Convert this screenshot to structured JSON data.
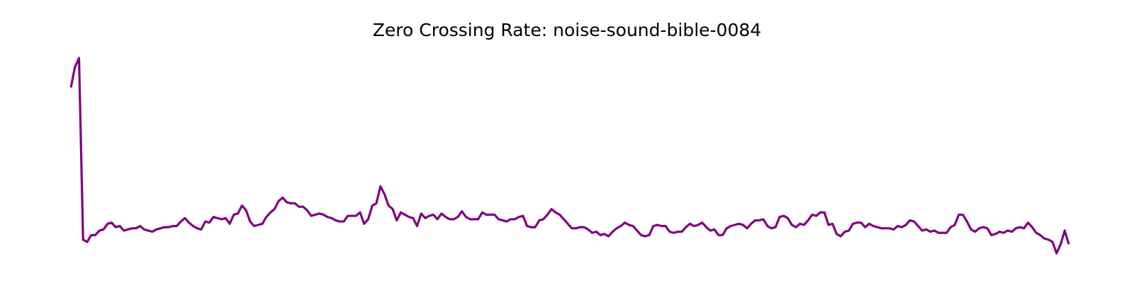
{
  "chart_data": {
    "type": "line",
    "title": "Zero Crossing Rate: noise-sound-bible-0084",
    "xlabel": "",
    "ylabel": "",
    "axes_visible": false,
    "grid": false,
    "series": [
      {
        "color": "#800080",
        "values": [
          0.081,
          0.09,
          0.094,
          0.014,
          0.013,
          0.016,
          0.016,
          0.018,
          0.0185,
          0.021,
          0.0215,
          0.0195,
          0.02,
          0.018,
          0.0185,
          0.019,
          0.019,
          0.02,
          0.0185,
          0.018,
          0.0175,
          0.0185,
          0.019,
          0.0195,
          0.0195,
          0.02,
          0.02,
          0.022,
          0.0235,
          0.0215,
          0.02,
          0.019,
          0.0185,
          0.022,
          0.0215,
          0.024,
          0.0235,
          0.023,
          0.0235,
          0.021,
          0.025,
          0.0255,
          0.029,
          0.027,
          0.022,
          0.02,
          0.0205,
          0.021,
          0.024,
          0.026,
          0.0275,
          0.031,
          0.0325,
          0.0305,
          0.03,
          0.03,
          0.0285,
          0.0285,
          0.027,
          0.0245,
          0.025,
          0.0255,
          0.025,
          0.024,
          0.0235,
          0.0225,
          0.022,
          0.022,
          0.0245,
          0.0245,
          0.0245,
          0.026,
          0.021,
          0.023,
          0.029,
          0.03,
          0.0375,
          0.034,
          0.029,
          0.0275,
          0.0225,
          0.026,
          0.025,
          0.024,
          0.0235,
          0.02,
          0.0255,
          0.0235,
          0.0245,
          0.025,
          0.023,
          0.0255,
          0.024,
          0.023,
          0.023,
          0.024,
          0.0265,
          0.024,
          0.023,
          0.023,
          0.023,
          0.026,
          0.025,
          0.025,
          0.025,
          0.023,
          0.0225,
          0.022,
          0.023,
          0.023,
          0.024,
          0.0245,
          0.02,
          0.0195,
          0.0195,
          0.0225,
          0.023,
          0.025,
          0.0275,
          0.026,
          0.025,
          0.023,
          0.021,
          0.019,
          0.019,
          0.0195,
          0.0195,
          0.0185,
          0.017,
          0.0175,
          0.016,
          0.0165,
          0.0155,
          0.0175,
          0.019,
          0.02,
          0.0215,
          0.0205,
          0.02,
          0.018,
          0.016,
          0.0155,
          0.016,
          0.02,
          0.0205,
          0.02,
          0.02,
          0.0175,
          0.017,
          0.0175,
          0.0175,
          0.0195,
          0.021,
          0.02,
          0.0205,
          0.0215,
          0.0195,
          0.018,
          0.0185,
          0.016,
          0.016,
          0.019,
          0.02,
          0.0205,
          0.021,
          0.0205,
          0.019,
          0.021,
          0.0225,
          0.0225,
          0.023,
          0.02,
          0.019,
          0.0195,
          0.024,
          0.0245,
          0.0235,
          0.0205,
          0.0195,
          0.021,
          0.0205,
          0.0225,
          0.025,
          0.0245,
          0.026,
          0.026,
          0.0205,
          0.021,
          0.0165,
          0.0155,
          0.0175,
          0.018,
          0.021,
          0.0215,
          0.0215,
          0.0195,
          0.021,
          0.02,
          0.0195,
          0.019,
          0.019,
          0.019,
          0.0185,
          0.02,
          0.0195,
          0.0205,
          0.0225,
          0.022,
          0.02,
          0.018,
          0.0185,
          0.0175,
          0.018,
          0.017,
          0.017,
          0.017,
          0.0195,
          0.0205,
          0.025,
          0.025,
          0.022,
          0.0185,
          0.0175,
          0.019,
          0.0195,
          0.019,
          0.016,
          0.0165,
          0.0175,
          0.017,
          0.018,
          0.0175,
          0.019,
          0.0195,
          0.019,
          0.0215,
          0.0195,
          0.017,
          0.016,
          0.0145,
          0.014,
          0.013,
          0.008,
          0.012,
          0.018,
          0.012
        ]
      }
    ]
  }
}
